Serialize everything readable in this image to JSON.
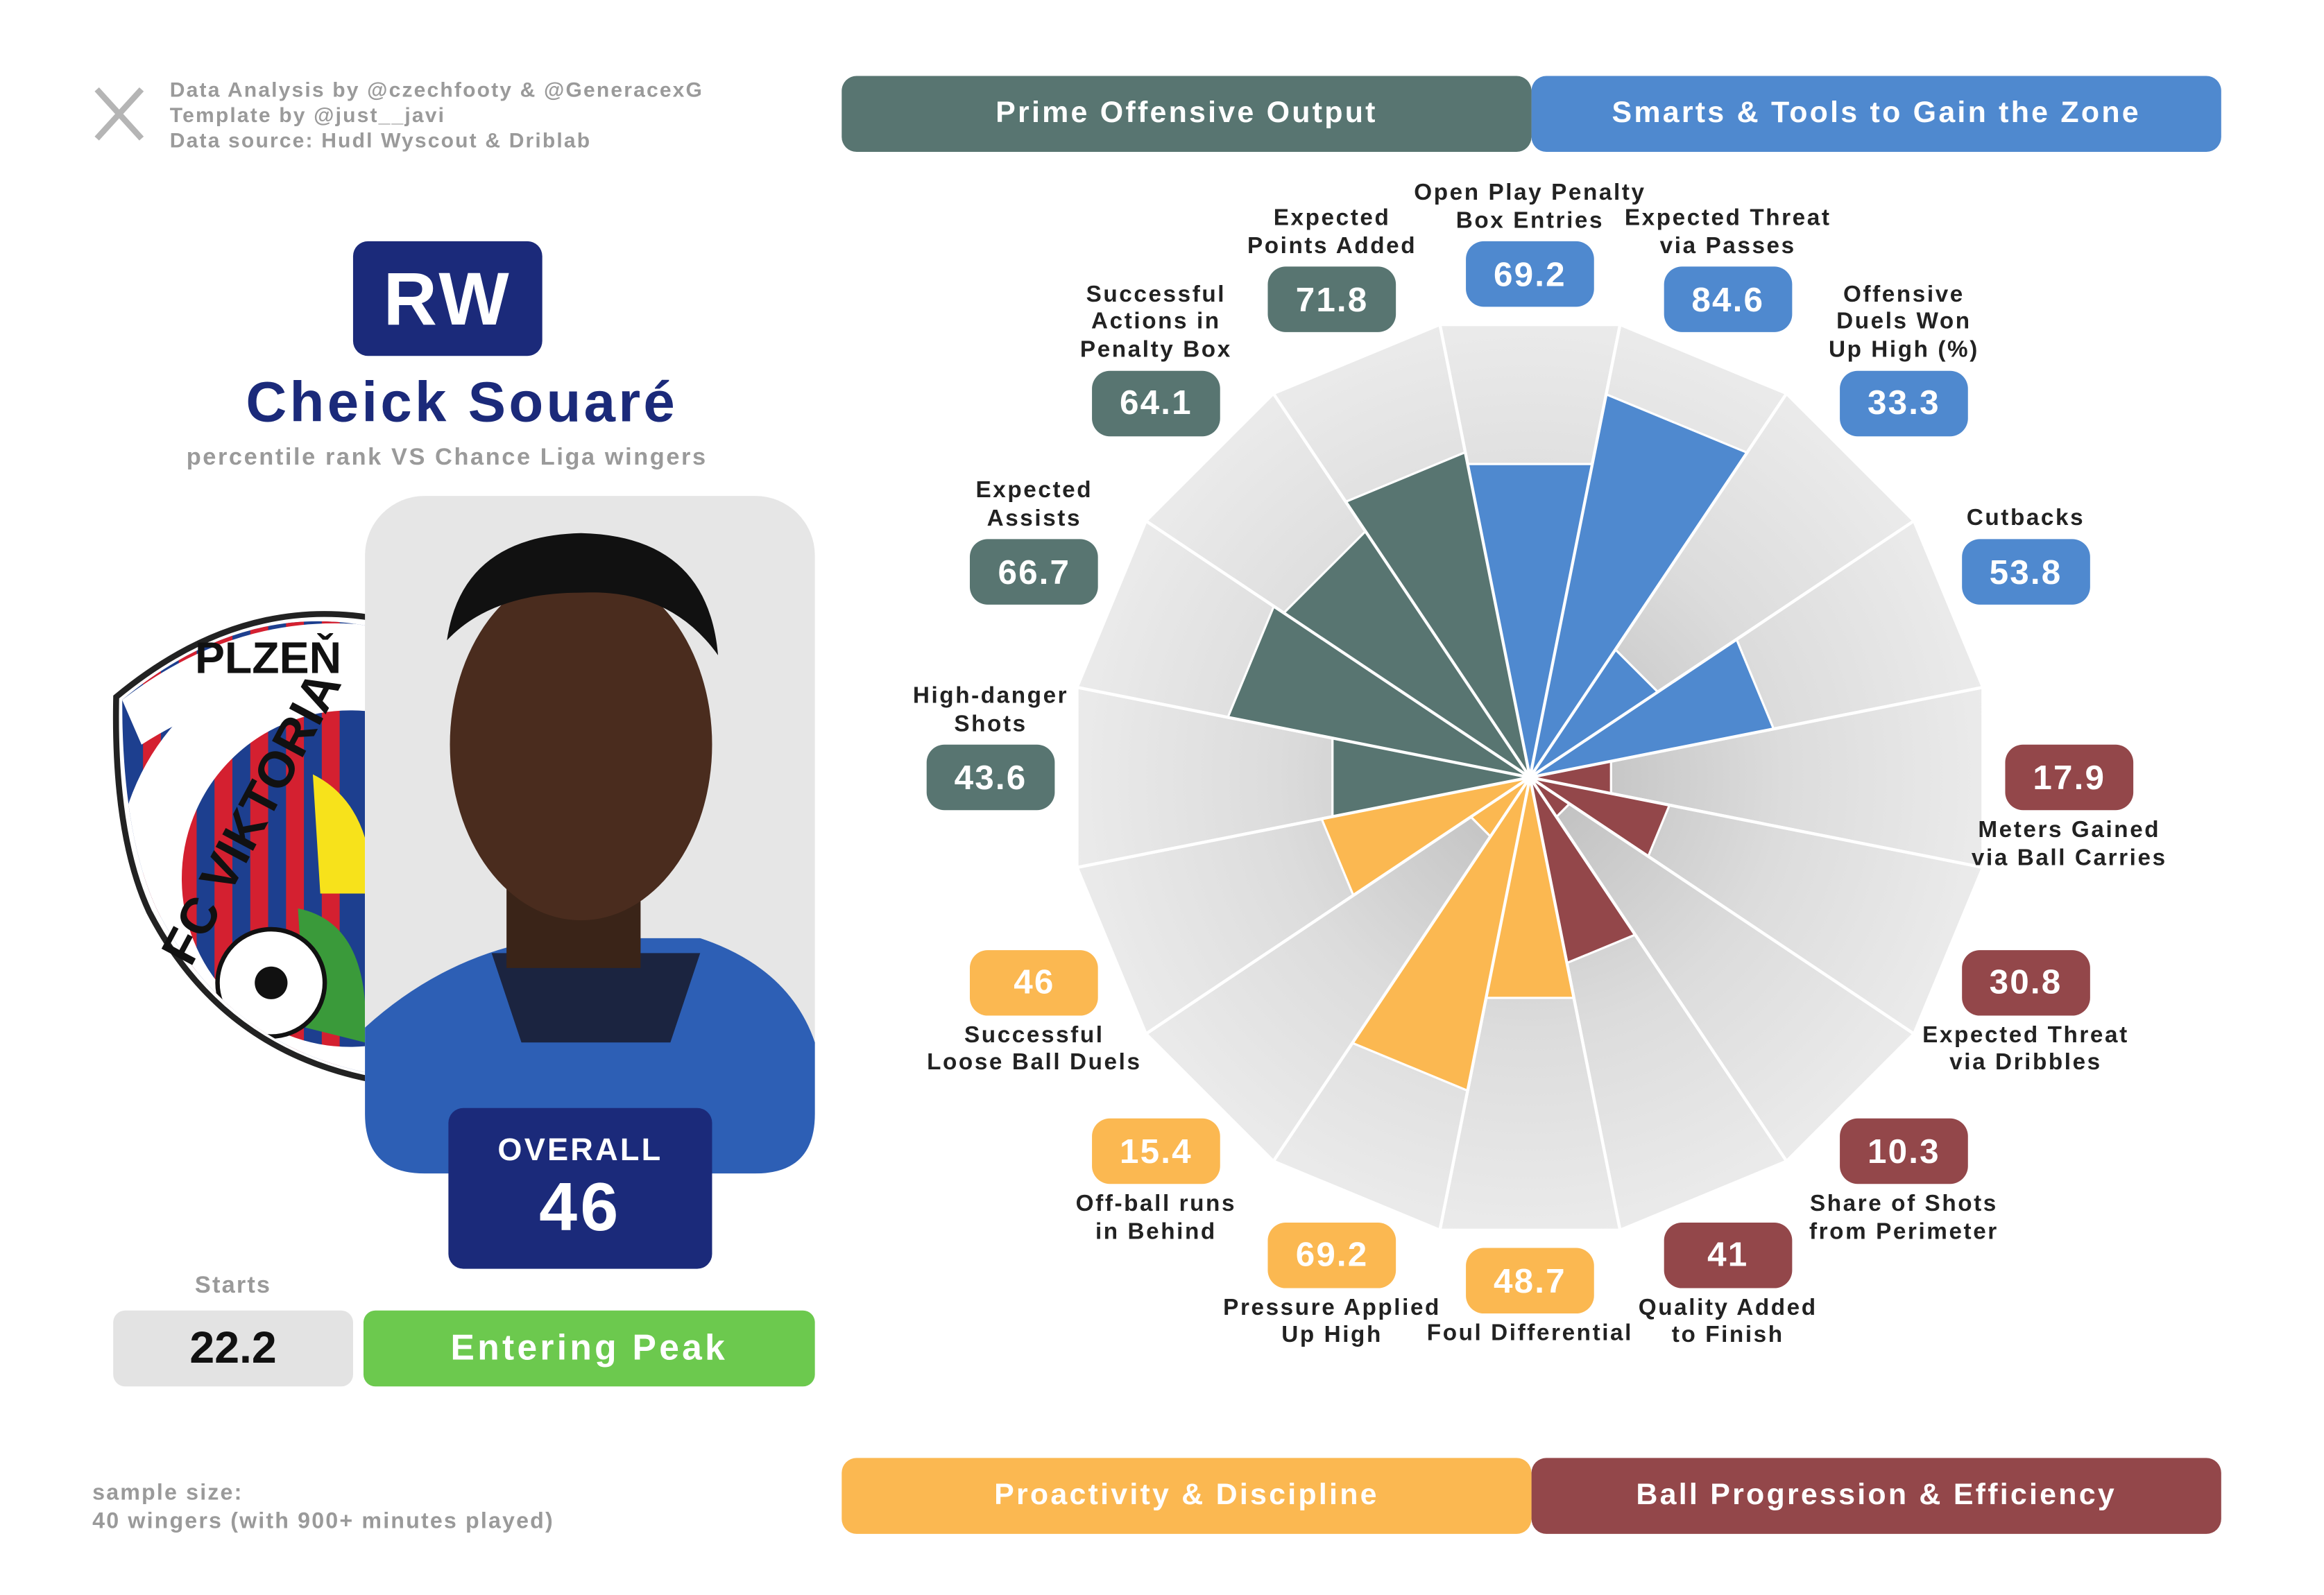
{
  "credits": [
    "Data Analysis by @czechfooty & @GeneracexG",
    "Template by @just__javi",
    "Data source: Hudl Wyscout & Driblab"
  ],
  "player": {
    "position": "RW",
    "name": "Cheick Souaré",
    "subtitle": "percentile rank VS Chance Liga wingers",
    "overall_label": "OVERALL",
    "overall": 46,
    "starts_label": "Starts",
    "starts": 22.2,
    "status": "Entering Peak"
  },
  "club": {
    "top": "PLZEŇ",
    "name": "FC VIKTORIA"
  },
  "sample": [
    "sample size:",
    "40 wingers (with 900+ minutes played)"
  ],
  "chart_data": {
    "type": "polar_bar",
    "ylim": [
      0,
      100
    ],
    "series": [
      {
        "name": "Smarts & Tools to Gain the Zone",
        "color": "#4f89cf",
        "categories": [
          "Open Play Penalty\nBox Entries",
          "Expected Threat\nvia Passes",
          "Offensive\nDuels Won\nUp High (%)",
          "Cutbacks"
        ],
        "values": [
          69.2,
          84.6,
          33.3,
          53.8
        ]
      },
      {
        "name": "Ball Progression & Efficiency",
        "color": "#93474a",
        "categories": [
          "Meters Gained\nvia Ball Carries",
          "Expected Threat\nvia Dribbles",
          "Share of Shots\nfrom Perimeter",
          "Quality Added\nto Finish"
        ],
        "values": [
          17.9,
          30.8,
          10.3,
          41
        ]
      },
      {
        "name": "Proactivity & Discipline",
        "color": "#fbb851",
        "categories": [
          "Foul Differential",
          "Pressure Applied\nUp High",
          "Off-ball runs\nin Behind",
          "Successful\nLoose Ball Duels"
        ],
        "values": [
          48.7,
          69.2,
          15.4,
          46
        ]
      },
      {
        "name": "Prime Offensive Output",
        "color": "#587571",
        "categories": [
          "High-danger\nShots",
          "Expected\nAssists",
          "Successful\nActions in\nPenalty Box",
          "Expected\nPoints Added"
        ],
        "values": [
          43.6,
          66.7,
          64.1,
          71.8
        ]
      }
    ]
  }
}
